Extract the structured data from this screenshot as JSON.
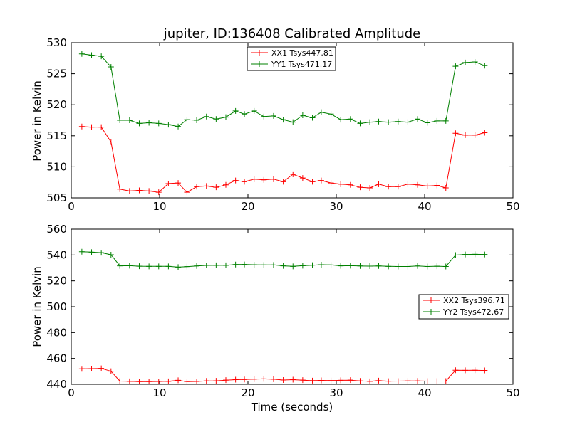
{
  "chart_data": [
    {
      "type": "line",
      "title": "jupiter, ID:136408 Calibrated Amplitude",
      "xlabel": "",
      "ylabel": "Power in Kelvin",
      "xlim": [
        0,
        50
      ],
      "ylim": [
        505,
        530
      ],
      "xticks": [
        "0",
        "10",
        "20",
        "30",
        "40",
        "50"
      ],
      "yticks": [
        "505",
        "510",
        "515",
        "520",
        "525",
        "530"
      ],
      "grid": false,
      "legend": "top-center",
      "series": [
        {
          "name": "XX1 Tsys447.81",
          "color": "#ff0000",
          "x": [
            1.2,
            2.3,
            3.4,
            4.5,
            5.5,
            6.6,
            7.7,
            8.8,
            9.9,
            11.0,
            12.1,
            13.1,
            14.2,
            15.3,
            16.4,
            17.5,
            18.6,
            19.6,
            20.7,
            21.8,
            22.9,
            24.0,
            25.1,
            26.2,
            27.3,
            28.3,
            29.4,
            30.5,
            31.6,
            32.7,
            33.8,
            34.8,
            35.9,
            37.0,
            38.1,
            39.2,
            40.3,
            41.4,
            42.4,
            43.5,
            44.6,
            45.7,
            46.8
          ],
          "y": [
            516.5,
            516.4,
            516.4,
            514.0,
            506.4,
            506.1,
            506.2,
            506.1,
            505.9,
            507.3,
            507.4,
            505.9,
            506.8,
            506.9,
            506.7,
            507.1,
            507.8,
            507.6,
            508.0,
            507.9,
            508.0,
            507.6,
            508.8,
            508.2,
            507.6,
            507.8,
            507.4,
            507.2,
            507.1,
            506.7,
            506.6,
            507.2,
            506.8,
            506.8,
            507.2,
            507.1,
            506.9,
            507.0,
            506.6,
            515.4,
            515.1,
            515.1,
            515.5
          ]
        },
        {
          "name": "YY1 Tsys471.17",
          "color": "#008000",
          "x": [
            1.2,
            2.3,
            3.4,
            4.5,
            5.5,
            6.6,
            7.7,
            8.8,
            9.9,
            11.0,
            12.1,
            13.1,
            14.2,
            15.3,
            16.4,
            17.5,
            18.6,
            19.6,
            20.7,
            21.8,
            22.9,
            24.0,
            25.1,
            26.2,
            27.3,
            28.3,
            29.4,
            30.5,
            31.6,
            32.7,
            33.8,
            34.8,
            35.9,
            37.0,
            38.1,
            39.2,
            40.3,
            41.4,
            42.4,
            43.5,
            44.6,
            45.7,
            46.8
          ],
          "y": [
            528.2,
            528.0,
            527.8,
            526.1,
            517.5,
            517.5,
            517.0,
            517.1,
            517.0,
            516.8,
            516.5,
            517.6,
            517.5,
            518.1,
            517.7,
            518.0,
            519.0,
            518.5,
            519.0,
            518.1,
            518.2,
            517.6,
            517.2,
            518.3,
            517.9,
            518.8,
            518.5,
            517.6,
            517.7,
            517.0,
            517.2,
            517.3,
            517.2,
            517.3,
            517.2,
            517.7,
            517.1,
            517.4,
            517.4,
            526.2,
            526.8,
            526.9,
            526.3
          ]
        }
      ]
    },
    {
      "type": "line",
      "title": "",
      "xlabel": "Time (seconds)",
      "ylabel": "Power in Kelvin",
      "xlim": [
        0,
        50
      ],
      "ylim": [
        440,
        560
      ],
      "xticks": [
        "0",
        "10",
        "20",
        "30",
        "40",
        "50"
      ],
      "yticks": [
        "440",
        "460",
        "480",
        "500",
        "520",
        "540",
        "560"
      ],
      "grid": false,
      "legend": "center-right",
      "series": [
        {
          "name": "XX2 Tsys396.71",
          "color": "#ff0000",
          "x": [
            1.2,
            2.3,
            3.4,
            4.5,
            5.5,
            6.6,
            7.7,
            8.8,
            9.9,
            11.0,
            12.1,
            13.1,
            14.2,
            15.3,
            16.4,
            17.5,
            18.6,
            19.6,
            20.7,
            21.8,
            22.9,
            24.0,
            25.1,
            26.2,
            27.3,
            28.3,
            29.4,
            30.5,
            31.6,
            32.7,
            33.8,
            34.8,
            35.9,
            37.0,
            38.1,
            39.2,
            40.3,
            41.4,
            42.4,
            43.5,
            44.6,
            45.7,
            46.8
          ],
          "y": [
            452.0,
            452.1,
            452.3,
            450.1,
            442.5,
            442.3,
            442.1,
            442.1,
            442.2,
            442.3,
            443.1,
            442.1,
            442.2,
            442.6,
            442.7,
            443.2,
            443.6,
            443.7,
            444.0,
            444.2,
            443.9,
            443.3,
            443.6,
            443.2,
            442.8,
            443.0,
            442.9,
            443.1,
            443.2,
            442.6,
            442.3,
            442.8,
            442.4,
            442.5,
            442.6,
            442.6,
            442.5,
            442.5,
            442.5,
            450.9,
            450.8,
            450.9,
            450.7
          ]
        },
        {
          "name": "YY2 Tsys472.67",
          "color": "#008000",
          "x": [
            1.2,
            2.3,
            3.4,
            4.5,
            5.5,
            6.6,
            7.7,
            8.8,
            9.9,
            11.0,
            12.1,
            13.1,
            14.2,
            15.3,
            16.4,
            17.5,
            18.6,
            19.6,
            20.7,
            21.8,
            22.9,
            24.0,
            25.1,
            26.2,
            27.3,
            28.3,
            29.4,
            30.5,
            31.6,
            32.7,
            33.8,
            34.8,
            35.9,
            37.0,
            38.1,
            39.2,
            40.3,
            41.4,
            42.4,
            43.5,
            44.6,
            45.7,
            46.8
          ],
          "y": [
            542.5,
            542.2,
            541.8,
            540.2,
            531.6,
            531.7,
            531.3,
            531.2,
            531.2,
            531.2,
            530.6,
            531.0,
            531.5,
            531.9,
            532.0,
            532.0,
            532.6,
            532.7,
            532.4,
            532.3,
            532.3,
            531.6,
            531.2,
            531.7,
            532.1,
            532.5,
            532.3,
            531.6,
            531.7,
            531.5,
            531.4,
            531.5,
            531.2,
            531.1,
            531.1,
            531.5,
            531.1,
            531.3,
            531.1,
            539.9,
            540.4,
            540.5,
            540.4
          ]
        }
      ]
    }
  ]
}
